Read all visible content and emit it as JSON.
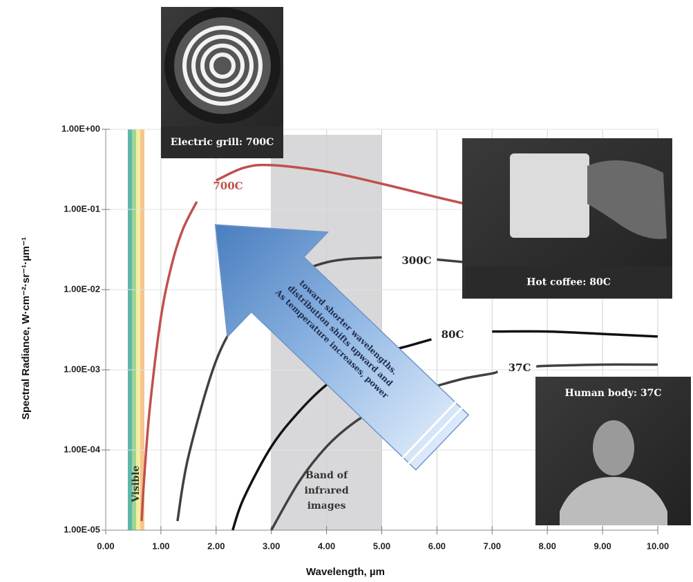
{
  "chart_data": {
    "type": "line",
    "x_label": "Wavelength, µm",
    "y_label": "Spectral Radiance, W·cm⁻²·sr⁻¹·µm⁻¹",
    "xlim": [
      0,
      10
    ],
    "xticks": [
      {
        "value": 0,
        "label": "0.00"
      },
      {
        "value": 1,
        "label": "1.00"
      },
      {
        "value": 2,
        "label": "2.00"
      },
      {
        "value": 3,
        "label": "3.00"
      },
      {
        "value": 4,
        "label": "4.00"
      },
      {
        "value": 5,
        "label": "5.00"
      },
      {
        "value": 6,
        "label": "6.00"
      },
      {
        "value": 7,
        "label": "7.00"
      },
      {
        "value": 8,
        "label": "8.00"
      },
      {
        "value": 9,
        "label": "9.00"
      },
      {
        "value": 10,
        "label": "10.00"
      }
    ],
    "ylim": [
      1e-05,
      1
    ],
    "yticks": [
      {
        "value": 1e-05,
        "label": "1.00E-05"
      },
      {
        "value": 0.0001,
        "label": "1.00E-04"
      },
      {
        "value": 0.001,
        "label": "1.00E-03"
      },
      {
        "value": 0.01,
        "label": "1.00E-02"
      },
      {
        "value": 0.1,
        "label": "1.00E-01"
      },
      {
        "value": 1,
        "label": "1.00E+00"
      }
    ],
    "yscale": "log",
    "grid": true,
    "series": [
      {
        "name": "700C",
        "color": "#c0504d",
        "x": [
          0.65,
          0.7,
          0.8,
          1.0,
          1.2,
          1.4,
          1.65,
          1.8,
          2.0,
          2.5,
          3.0,
          4.0,
          5.0,
          6.0,
          6.5
        ],
        "values": [
          1.3e-05,
          4.8e-05,
          0.00034,
          0.0045,
          0.021,
          0.057,
          0.125,
          null,
          0.23,
          0.33,
          0.357,
          0.296,
          0.209,
          0.142,
          0.118
        ]
      },
      {
        "name": "300C",
        "color": "#404040",
        "x": [
          1.3,
          1.5,
          2.0,
          2.5,
          3.0,
          4.0,
          5.0,
          5.5,
          6.0,
          6.5
        ],
        "values": [
          1.3e-05,
          8.4e-05,
          0.0013,
          0.0053,
          0.0113,
          0.0219,
          0.0253,
          null,
          0.0237,
          0.022
        ]
      },
      {
        "name": "80C",
        "color": "#111111",
        "x": [
          2.3,
          2.5,
          3.0,
          3.5,
          4.0,
          4.5,
          5.0,
          5.5,
          5.9,
          6.3,
          7.0,
          8.0,
          9.0,
          10.0
        ],
        "values": [
          1e-05,
          2.5e-05,
          0.00011,
          0.0003,
          0.00065,
          0.0011,
          0.0016,
          0.002,
          0.0024,
          null,
          0.003,
          0.003,
          0.0028,
          0.0026
        ]
      },
      {
        "name": "37C",
        "color": "#404040",
        "x": [
          3.0,
          3.5,
          4.0,
          4.5,
          5.0,
          5.5,
          6.0,
          6.5,
          7.0,
          7.1,
          7.4,
          7.8,
          8.0,
          9.0,
          10.0
        ],
        "values": [
          1e-05,
          4e-05,
          0.00011,
          0.00022,
          0.00035,
          0.0005,
          0.00063,
          0.00078,
          0.0009,
          0.00095,
          null,
          0.0011,
          0.00112,
          0.00116,
          0.00116
        ]
      }
    ],
    "bands": [
      {
        "label": "Visible",
        "range": [
          0.4,
          0.7
        ]
      },
      {
        "label_lines": [
          "Band of",
          "infrared",
          "images"
        ],
        "range": [
          3,
          5
        ]
      }
    ],
    "annotation_lines": [
      "As temperature increases, power",
      "distribution shifts upward and",
      "toward shorter wavelengths."
    ],
    "photos": [
      {
        "caption": "Electric grill: 700C"
      },
      {
        "caption": "Hot coffee: 80C"
      },
      {
        "caption": "Human body: 37C"
      }
    ]
  }
}
